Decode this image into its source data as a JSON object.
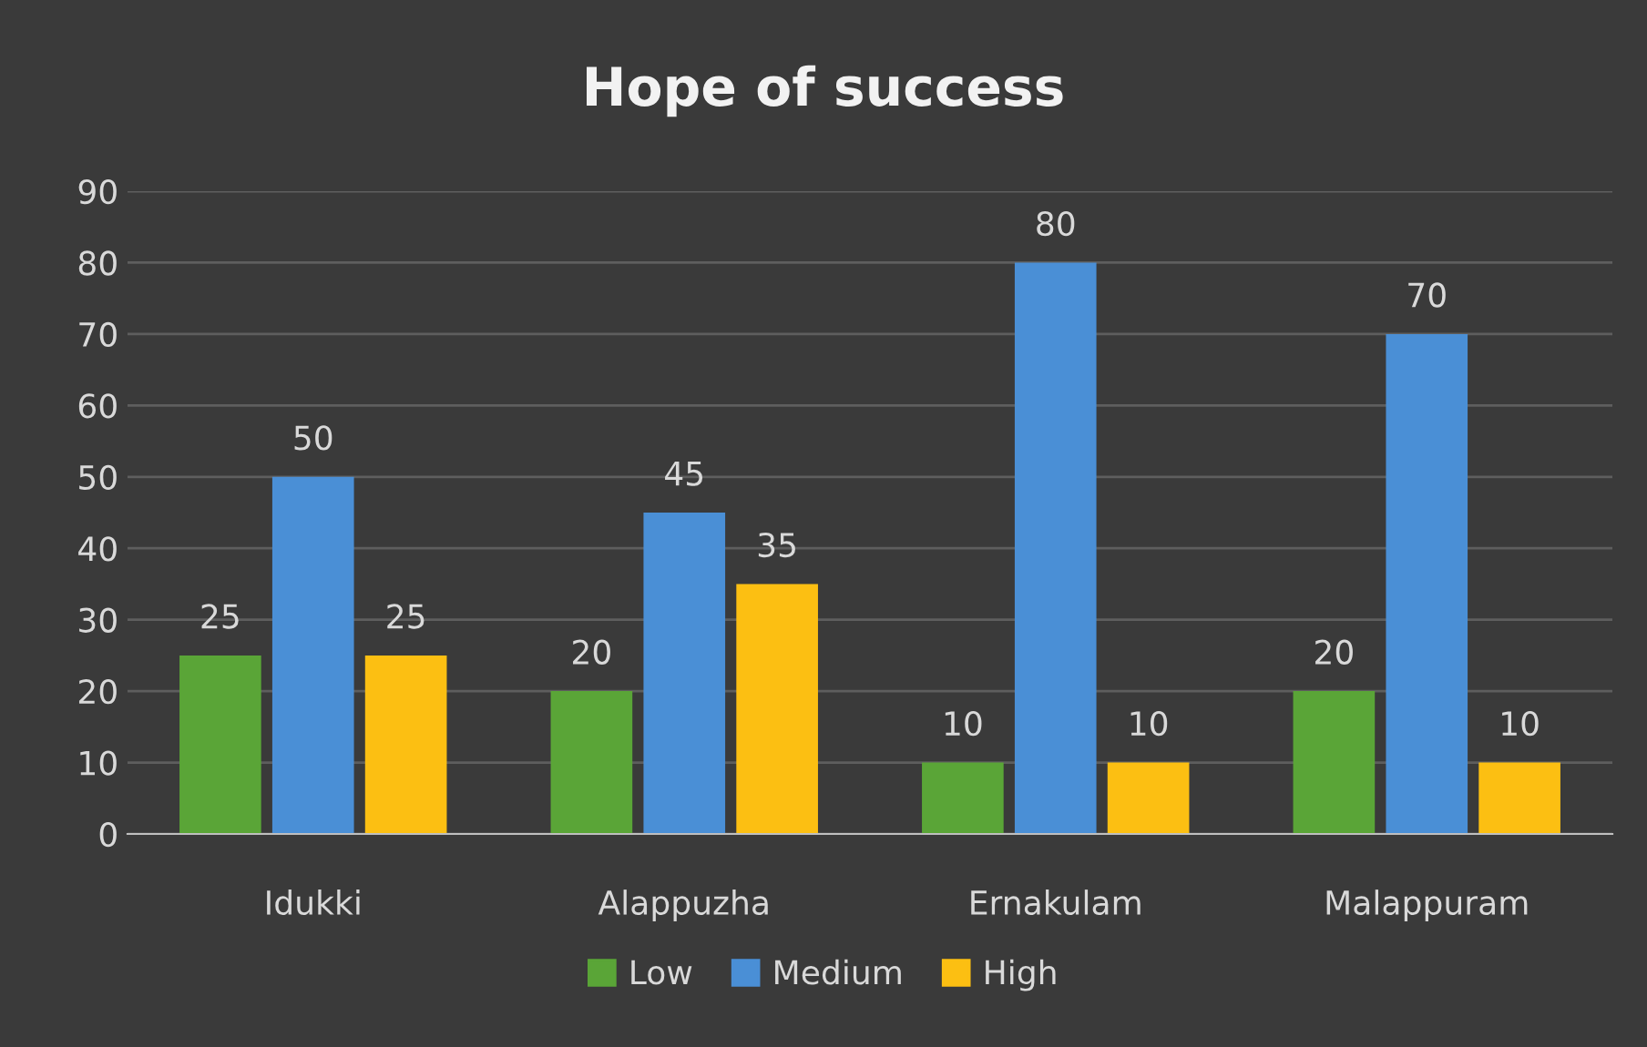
{
  "chart_data": {
    "type": "bar",
    "title": "Hope of success",
    "categories": [
      "Idukki",
      "Alappuzha",
      "Ernakulam",
      "Malappuram"
    ],
    "series": [
      {
        "name": "Low",
        "color": "#5aa537",
        "values": [
          25,
          20,
          10,
          20
        ]
      },
      {
        "name": "Medium",
        "color": "#4a8fd6",
        "values": [
          50,
          45,
          80,
          70
        ]
      },
      {
        "name": "High",
        "color": "#fcbf12",
        "values": [
          25,
          35,
          10,
          10
        ]
      }
    ],
    "ylim": [
      0,
      90
    ],
    "yticks": [
      0,
      10,
      20,
      30,
      40,
      50,
      60,
      70,
      80,
      90
    ],
    "grid": "y",
    "legend": "bottom",
    "data_labels": true
  }
}
